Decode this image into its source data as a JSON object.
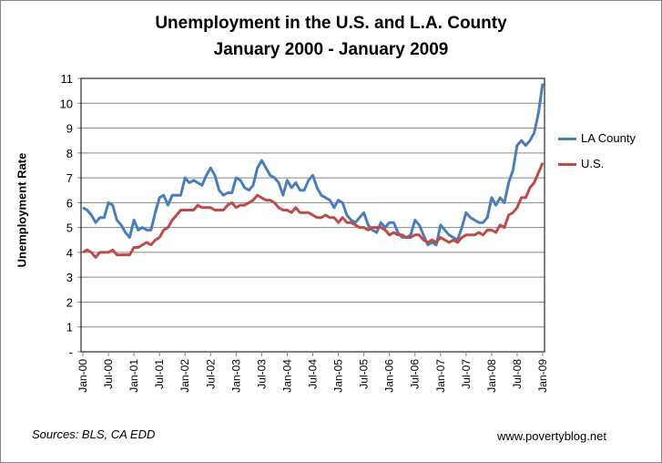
{
  "chart_data": {
    "type": "line",
    "title": "Unemployment in the U.S. and L.A. County",
    "subtitle": "January 2000 - January 2009",
    "xlabel": "",
    "ylabel": "Unemployment Rate",
    "ylim": [
      0,
      11
    ],
    "yticks": [
      "-",
      "1",
      "2",
      "3",
      "4",
      "5",
      "6",
      "7",
      "8",
      "9",
      "10",
      "11"
    ],
    "xtick_labels": [
      "Jan-00",
      "Jul-00",
      "Jan-01",
      "Jul-01",
      "Jan-02",
      "Jul-02",
      "Jan-03",
      "Jul-03",
      "Jan-04",
      "Jul-04",
      "Jan-05",
      "Jul-05",
      "Jan-06",
      "Jul-06",
      "Jan-07",
      "Jul-07",
      "Jan-08",
      "Jul-08",
      "Jan-09"
    ],
    "x_range": [
      "Jan-00",
      "Jan-09"
    ],
    "frequency": "monthly",
    "grid": "horizontal",
    "legend": "right",
    "series": [
      {
        "name": "LA County",
        "color": "#4a7ebb",
        "values": [
          5.8,
          5.7,
          5.5,
          5.2,
          5.4,
          5.4,
          6.0,
          5.9,
          5.3,
          5.1,
          4.8,
          4.6,
          5.3,
          4.9,
          5.0,
          4.9,
          4.9,
          5.6,
          6.2,
          6.3,
          5.9,
          6.3,
          6.3,
          6.3,
          7.0,
          6.8,
          6.9,
          6.8,
          6.7,
          7.1,
          7.4,
          7.1,
          6.5,
          6.3,
          6.4,
          6.4,
          7.0,
          6.9,
          6.6,
          6.5,
          6.7,
          7.4,
          7.7,
          7.4,
          7.1,
          7.0,
          6.8,
          6.3,
          6.9,
          6.6,
          6.8,
          6.5,
          6.5,
          6.9,
          7.1,
          6.6,
          6.3,
          6.2,
          6.1,
          5.8,
          6.1,
          6.0,
          5.5,
          5.3,
          5.2,
          5.4,
          5.6,
          5.1,
          4.9,
          4.8,
          5.2,
          5.0,
          5.2,
          5.2,
          4.8,
          4.6,
          4.6,
          4.7,
          5.3,
          5.1,
          4.7,
          4.3,
          4.4,
          4.3,
          5.1,
          4.9,
          4.7,
          4.6,
          4.5,
          5.0,
          5.6,
          5.4,
          5.3,
          5.2,
          5.2,
          5.4,
          6.2,
          5.9,
          6.2,
          6.0,
          6.8,
          7.3,
          8.3,
          8.5,
          8.3,
          8.5,
          8.8,
          9.6,
          10.8
        ]
      },
      {
        "name": "U.S.",
        "color": "#be4b48",
        "values": [
          4.0,
          4.1,
          4.0,
          3.8,
          4.0,
          4.0,
          4.0,
          4.1,
          3.9,
          3.9,
          3.9,
          3.9,
          4.2,
          4.2,
          4.3,
          4.4,
          4.3,
          4.5,
          4.6,
          4.9,
          5.0,
          5.3,
          5.5,
          5.7,
          5.7,
          5.7,
          5.7,
          5.9,
          5.8,
          5.8,
          5.8,
          5.7,
          5.7,
          5.7,
          5.9,
          6.0,
          5.8,
          5.9,
          5.9,
          6.0,
          6.1,
          6.3,
          6.2,
          6.1,
          6.1,
          6.0,
          5.8,
          5.7,
          5.7,
          5.6,
          5.8,
          5.6,
          5.6,
          5.6,
          5.5,
          5.4,
          5.4,
          5.5,
          5.4,
          5.4,
          5.2,
          5.4,
          5.2,
          5.2,
          5.1,
          5.0,
          5.0,
          4.9,
          5.0,
          5.0,
          5.0,
          4.9,
          4.7,
          4.8,
          4.7,
          4.7,
          4.6,
          4.6,
          4.7,
          4.7,
          4.5,
          4.4,
          4.5,
          4.4,
          4.6,
          4.5,
          4.4,
          4.5,
          4.4,
          4.6,
          4.7,
          4.7,
          4.7,
          4.8,
          4.7,
          4.9,
          4.9,
          4.8,
          5.1,
          5.0,
          5.5,
          5.6,
          5.8,
          6.2,
          6.2,
          6.6,
          6.8,
          7.2,
          7.6
        ]
      }
    ]
  },
  "footer": {
    "sources": "Sources: BLS, CA EDD",
    "site": "www.povertyblog.net"
  }
}
